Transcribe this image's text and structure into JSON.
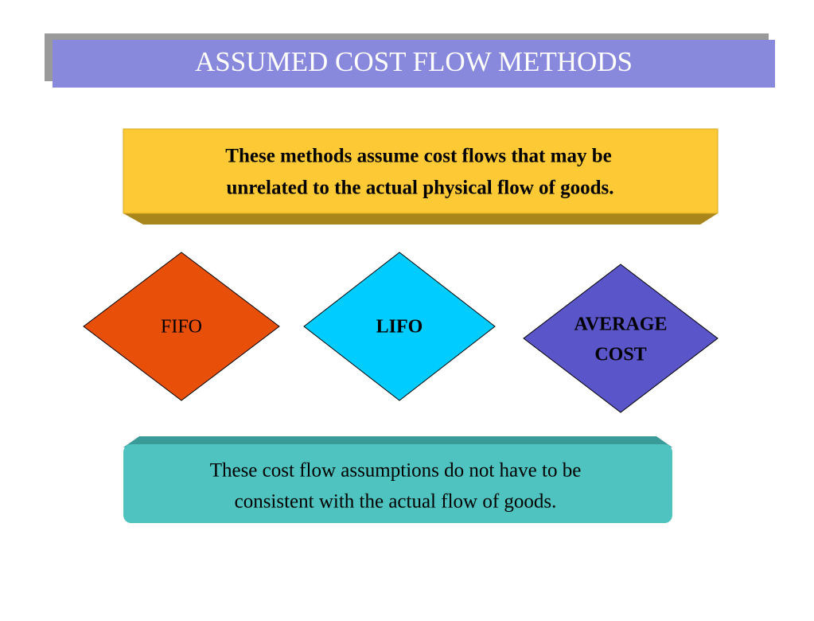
{
  "title": "ASSUMED COST FLOW METHODS",
  "top_box": {
    "lines": [
      "These methods assume cost flows that may be",
      "unrelated to the actual physical flow of goods."
    ]
  },
  "methods": [
    {
      "lines": [
        "FIFO"
      ]
    },
    {
      "lines": [
        "LIFO"
      ]
    },
    {
      "lines": [
        "AVERAGE",
        "COST"
      ]
    }
  ],
  "bottom_box": {
    "lines": [
      "These cost flow assumptions do not have to be",
      "consistent with the actual flow of goods."
    ]
  }
}
